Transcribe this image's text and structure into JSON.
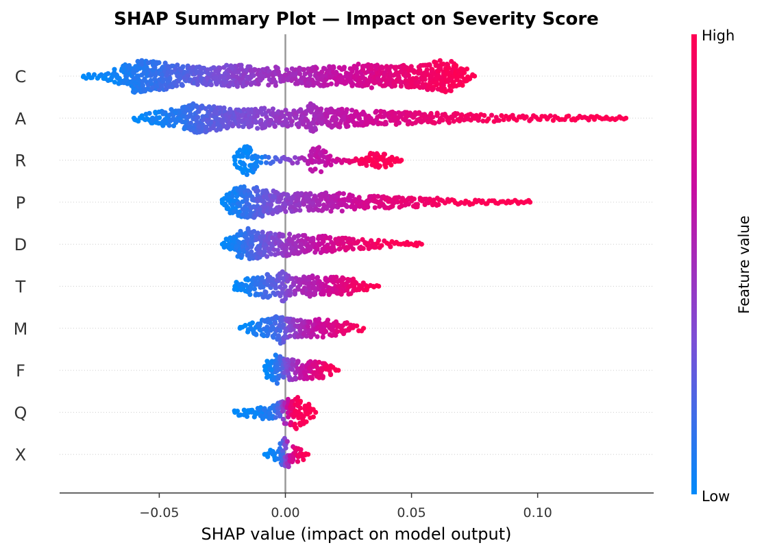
{
  "chart_data": {
    "type": "scatter",
    "subtype": "beeswarm",
    "title": "SHAP Summary Plot — Impact on Severity Score",
    "xlabel": "SHAP value (impact on model output)",
    "ylabel": "",
    "xlim": [
      -0.0895,
      0.146
    ],
    "xticks": [
      -0.05,
      0.0,
      0.05,
      0.1
    ],
    "xtick_labels": [
      "−0.05",
      "0.00",
      "0.05",
      "0.10"
    ],
    "zero_line": 0.0,
    "grid": false,
    "row_guides": "dotted",
    "colorbar": {
      "label": "Feature value",
      "high_label": "High",
      "low_label": "Low",
      "colors": [
        "#008AFA",
        "#7B4FD6",
        "#C80CA0",
        "#FF0053"
      ]
    },
    "features": [
      {
        "name": "C",
        "min_shap": -0.08,
        "max_shap": 0.075,
        "profile": [
          [
            -0.08,
            0.05,
            0.0
          ],
          [
            -0.072,
            0.12,
            0.02
          ],
          [
            -0.065,
            0.5,
            0.05
          ],
          [
            -0.06,
            1.0,
            0.08
          ],
          [
            -0.05,
            0.85,
            0.15
          ],
          [
            -0.04,
            0.6,
            0.22
          ],
          [
            -0.03,
            0.5,
            0.3
          ],
          [
            -0.02,
            0.7,
            0.38
          ],
          [
            -0.01,
            0.45,
            0.45
          ],
          [
            -0.003,
            0.55,
            0.48
          ],
          [
            0.0,
            0.3,
            0.5
          ],
          [
            0.005,
            0.5,
            0.52
          ],
          [
            0.015,
            0.6,
            0.6
          ],
          [
            0.025,
            0.5,
            0.68
          ],
          [
            0.03,
            0.75,
            0.72
          ],
          [
            0.04,
            0.6,
            0.8
          ],
          [
            0.05,
            0.65,
            0.88
          ],
          [
            0.058,
            0.9,
            0.93
          ],
          [
            0.065,
            1.0,
            0.97
          ],
          [
            0.072,
            0.4,
            1.0
          ],
          [
            0.075,
            0.1,
            1.0
          ]
        ]
      },
      {
        "name": "A",
        "min_shap": -0.06,
        "max_shap": 0.135,
        "profile": [
          [
            -0.06,
            0.1,
            0.0
          ],
          [
            -0.05,
            0.35,
            0.05
          ],
          [
            -0.04,
            0.7,
            0.12
          ],
          [
            -0.035,
            0.95,
            0.18
          ],
          [
            -0.03,
            0.8,
            0.24
          ],
          [
            -0.02,
            0.5,
            0.3
          ],
          [
            -0.01,
            0.6,
            0.38
          ],
          [
            0.0,
            0.45,
            0.45
          ],
          [
            0.008,
            0.5,
            0.5
          ],
          [
            0.01,
            0.9,
            0.5
          ],
          [
            0.015,
            0.45,
            0.55
          ],
          [
            0.02,
            0.6,
            0.6
          ],
          [
            0.03,
            0.4,
            0.68
          ],
          [
            0.04,
            0.35,
            0.75
          ],
          [
            0.05,
            0.3,
            0.82
          ],
          [
            0.06,
            0.28,
            0.88
          ],
          [
            0.07,
            0.2,
            0.92
          ],
          [
            0.08,
            0.15,
            0.95
          ],
          [
            0.09,
            0.1,
            0.97
          ],
          [
            0.1,
            0.08,
            0.98
          ],
          [
            0.115,
            0.05,
            1.0
          ],
          [
            0.135,
            0.03,
            1.0
          ]
        ]
      },
      {
        "name": "R",
        "min_shap": -0.02,
        "max_shap": 0.046,
        "profile": [
          [
            -0.02,
            0.2,
            0.0
          ],
          [
            -0.018,
            0.7,
            0.0
          ],
          [
            -0.015,
            0.9,
            0.02
          ],
          [
            -0.012,
            0.6,
            0.05
          ],
          [
            -0.01,
            0.15,
            0.05
          ],
          [
            0.008,
            0.1,
            0.55
          ],
          [
            0.01,
            0.6,
            0.6
          ],
          [
            0.013,
            0.8,
            0.62
          ],
          [
            0.016,
            0.5,
            0.64
          ],
          [
            0.019,
            0.1,
            0.65
          ],
          [
            0.029,
            0.1,
            0.95
          ],
          [
            0.033,
            0.35,
            0.97
          ],
          [
            0.038,
            0.45,
            0.98
          ],
          [
            0.042,
            0.3,
            1.0
          ],
          [
            0.046,
            0.08,
            1.0
          ]
        ]
      },
      {
        "name": "P",
        "min_shap": -0.025,
        "max_shap": 0.097,
        "profile": [
          [
            -0.025,
            0.2,
            0.0
          ],
          [
            -0.02,
            0.85,
            0.05
          ],
          [
            -0.015,
            1.0,
            0.15
          ],
          [
            -0.01,
            0.9,
            0.25
          ],
          [
            -0.005,
            0.7,
            0.32
          ],
          [
            0.0,
            0.55,
            0.4
          ],
          [
            0.01,
            0.5,
            0.5
          ],
          [
            0.02,
            0.55,
            0.6
          ],
          [
            0.03,
            0.35,
            0.72
          ],
          [
            0.04,
            0.3,
            0.82
          ],
          [
            0.05,
            0.25,
            0.88
          ],
          [
            0.06,
            0.18,
            0.93
          ],
          [
            0.065,
            0.1,
            0.96
          ],
          [
            0.07,
            0.08,
            0.97
          ],
          [
            0.08,
            0.06,
            0.99
          ],
          [
            0.09,
            0.05,
            1.0
          ],
          [
            0.097,
            0.03,
            1.0
          ]
        ]
      },
      {
        "name": "D",
        "min_shap": -0.025,
        "max_shap": 0.054,
        "profile": [
          [
            -0.025,
            0.15,
            0.0
          ],
          [
            -0.02,
            0.7,
            0.05
          ],
          [
            -0.015,
            0.95,
            0.15
          ],
          [
            -0.01,
            0.85,
            0.25
          ],
          [
            -0.005,
            0.6,
            0.35
          ],
          [
            0.0,
            0.7,
            0.45
          ],
          [
            0.005,
            0.55,
            0.52
          ],
          [
            0.01,
            0.45,
            0.6
          ],
          [
            0.015,
            0.5,
            0.68
          ],
          [
            0.02,
            0.35,
            0.75
          ],
          [
            0.025,
            0.3,
            0.82
          ],
          [
            0.03,
            0.25,
            0.88
          ],
          [
            0.035,
            0.2,
            0.93
          ],
          [
            0.04,
            0.12,
            0.97
          ],
          [
            0.045,
            0.06,
            1.0
          ],
          [
            0.05,
            0.05,
            1.0
          ],
          [
            0.054,
            0.03,
            1.0
          ]
        ]
      },
      {
        "name": "T",
        "min_shap": -0.02,
        "max_shap": 0.037,
        "profile": [
          [
            -0.02,
            0.15,
            0.0
          ],
          [
            -0.015,
            0.45,
            0.05
          ],
          [
            -0.01,
            0.55,
            0.15
          ],
          [
            -0.007,
            0.9,
            0.2
          ],
          [
            -0.004,
            0.5,
            0.25
          ],
          [
            -0.001,
            0.9,
            0.3
          ],
          [
            0.002,
            0.5,
            0.4
          ],
          [
            0.005,
            0.45,
            0.5
          ],
          [
            0.01,
            0.65,
            0.55
          ],
          [
            0.015,
            0.45,
            0.65
          ],
          [
            0.02,
            0.55,
            0.75
          ],
          [
            0.025,
            0.45,
            0.85
          ],
          [
            0.03,
            0.3,
            0.93
          ],
          [
            0.033,
            0.15,
            0.97
          ],
          [
            0.037,
            0.05,
            1.0
          ]
        ]
      },
      {
        "name": "M",
        "min_shap": -0.018,
        "max_shap": 0.031,
        "profile": [
          [
            -0.018,
            0.1,
            0.0
          ],
          [
            -0.015,
            0.2,
            0.02
          ],
          [
            -0.01,
            0.45,
            0.08
          ],
          [
            -0.005,
            0.55,
            0.15
          ],
          [
            -0.002,
            0.95,
            0.2
          ],
          [
            0.0,
            0.7,
            0.3
          ],
          [
            0.003,
            0.6,
            0.42
          ],
          [
            0.006,
            0.55,
            0.5
          ],
          [
            0.01,
            0.55,
            0.6
          ],
          [
            0.015,
            0.5,
            0.7
          ],
          [
            0.02,
            0.4,
            0.8
          ],
          [
            0.025,
            0.3,
            0.9
          ],
          [
            0.028,
            0.15,
            0.96
          ],
          [
            0.031,
            0.05,
            1.0
          ]
        ]
      },
      {
        "name": "F",
        "min_shap": -0.008,
        "max_shap": 0.021,
        "profile": [
          [
            -0.008,
            0.35,
            0.0
          ],
          [
            -0.005,
            0.85,
            0.05
          ],
          [
            -0.003,
            1.0,
            0.12
          ],
          [
            0.0,
            0.7,
            0.3
          ],
          [
            0.003,
            0.65,
            0.45
          ],
          [
            0.006,
            0.5,
            0.6
          ],
          [
            0.01,
            0.5,
            0.72
          ],
          [
            0.014,
            0.45,
            0.85
          ],
          [
            0.018,
            0.3,
            0.95
          ],
          [
            0.021,
            0.1,
            1.0
          ]
        ]
      },
      {
        "name": "Q",
        "min_shap": -0.02,
        "max_shap": 0.012,
        "profile": [
          [
            -0.02,
            0.1,
            0.0
          ],
          [
            -0.015,
            0.2,
            0.02
          ],
          [
            -0.01,
            0.35,
            0.05
          ],
          [
            -0.005,
            0.45,
            0.1
          ],
          [
            -0.002,
            0.6,
            0.25
          ],
          [
            0.0,
            0.75,
            0.55
          ],
          [
            0.002,
            0.9,
            0.8
          ],
          [
            0.004,
            1.0,
            0.95
          ],
          [
            0.007,
            0.7,
            0.98
          ],
          [
            0.01,
            0.4,
            1.0
          ],
          [
            0.012,
            0.15,
            1.0
          ]
        ]
      },
      {
        "name": "X",
        "min_shap": -0.008,
        "max_shap": 0.009,
        "profile": [
          [
            -0.008,
            0.15,
            0.0
          ],
          [
            -0.005,
            0.25,
            0.02
          ],
          [
            -0.003,
            0.35,
            0.05
          ],
          [
            -0.001,
            0.9,
            0.2
          ],
          [
            0.0,
            1.0,
            0.35
          ],
          [
            0.002,
            0.55,
            0.65
          ],
          [
            0.004,
            0.45,
            0.85
          ],
          [
            0.007,
            0.3,
            0.95
          ],
          [
            0.009,
            0.1,
            1.0
          ]
        ]
      }
    ]
  }
}
